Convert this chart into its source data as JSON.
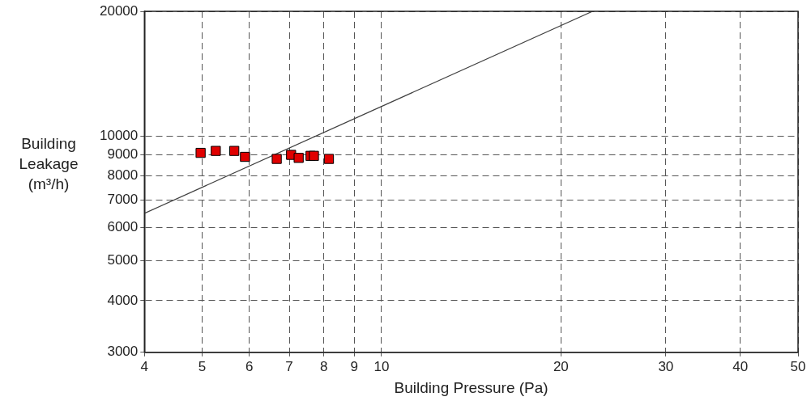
{
  "chart_data": {
    "type": "scatter",
    "xlabel": "Building Pressure (Pa)",
    "ylabel": "Building Leakage (m³/h)",
    "log": "xy",
    "grid": true,
    "legend": false,
    "marker": "square",
    "xlim": [
      4,
      50
    ],
    "xticks": [
      4,
      5,
      6,
      7,
      8,
      9,
      10,
      20,
      30,
      40,
      50
    ],
    "ylim": [
      3000,
      20000
    ],
    "yticks": [
      3000,
      4000,
      5000,
      6000,
      7000,
      8000,
      9000,
      10000,
      20000
    ],
    "series": [
      {
        "color": "#e00000",
        "x": [
          4.97,
          5.27,
          5.66,
          5.9,
          6.67,
          7.05,
          7.26,
          7.6,
          7.7,
          8.16
        ],
        "values": [
          9100,
          9200,
          9200,
          8900,
          8800,
          9000,
          8850,
          8950,
          8950,
          8800
        ]
      },
      {
        "type": "line",
        "color": "#404040",
        "line_style": "solid",
        "marker": "none",
        "x": [
          4,
          22.6
        ],
        "values": [
          6500,
          20000
        ]
      }
    ]
  }
}
